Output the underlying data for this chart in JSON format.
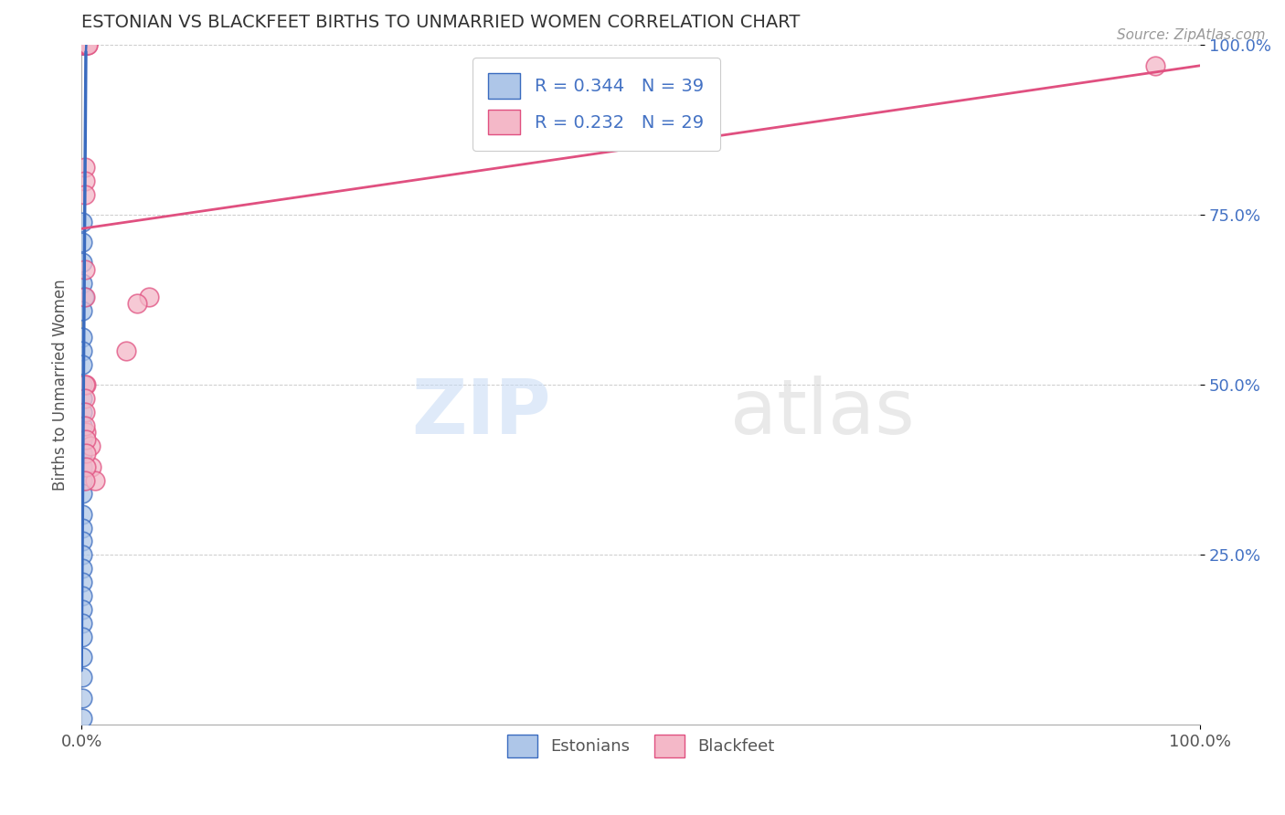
{
  "title": "ESTONIAN VS BLACKFEET BIRTHS TO UNMARRIED WOMEN CORRELATION CHART",
  "source_text": "Source: ZipAtlas.com",
  "ylabel": "Births to Unmarried Women",
  "legend_label1": "Estonians",
  "legend_label2": "Blackfeet",
  "R_blue": 0.344,
  "N_blue": 39,
  "R_pink": 0.232,
  "N_pink": 29,
  "blue_color": "#aec6e8",
  "pink_color": "#f4b8c8",
  "blue_line_color": "#3a6bbf",
  "pink_line_color": "#e05080",
  "watermark_zip": "ZIP",
  "watermark_atlas": "atlas",
  "blue_x": [
    0.001,
    0.002,
    0.002,
    0.003,
    0.003,
    0.003,
    0.004,
    0.001,
    0.001,
    0.001,
    0.001,
    0.002,
    0.001,
    0.001,
    0.001,
    0.001,
    0.001,
    0.001,
    0.001,
    0.001,
    0.001,
    0.001,
    0.001,
    0.001,
    0.001,
    0.001,
    0.001,
    0.001,
    0.001,
    0.001,
    0.001,
    0.001,
    0.001,
    0.001,
    0.001,
    0.001,
    0.001,
    0.001,
    0.001
  ],
  "blue_y": [
    1.0,
    1.0,
    1.0,
    1.0,
    1.0,
    1.0,
    1.0,
    0.74,
    0.71,
    0.68,
    0.65,
    0.63,
    0.61,
    0.57,
    0.55,
    0.53,
    0.5,
    0.48,
    0.46,
    0.44,
    0.42,
    0.4,
    0.38,
    0.36,
    0.34,
    0.31,
    0.29,
    0.27,
    0.25,
    0.23,
    0.21,
    0.19,
    0.17,
    0.15,
    0.13,
    0.1,
    0.07,
    0.04,
    0.01
  ],
  "pink_x": [
    0.001,
    0.002,
    0.003,
    0.004,
    0.005,
    0.006,
    0.006,
    0.003,
    0.003,
    0.003,
    0.003,
    0.003,
    0.004,
    0.004,
    0.008,
    0.009,
    0.012,
    0.06,
    0.003,
    0.003,
    0.003,
    0.003,
    0.004,
    0.004,
    0.004,
    0.003,
    0.04,
    0.05,
    0.96
  ],
  "pink_y": [
    1.0,
    1.0,
    1.0,
    1.0,
    1.0,
    1.0,
    1.0,
    0.82,
    0.8,
    0.78,
    0.67,
    0.63,
    0.5,
    0.43,
    0.41,
    0.38,
    0.36,
    0.63,
    0.5,
    0.48,
    0.46,
    0.44,
    0.42,
    0.4,
    0.38,
    0.36,
    0.55,
    0.62,
    0.97
  ],
  "xmin": 0.0,
  "xmax": 1.0,
  "ymin": 0.0,
  "ymax": 1.0,
  "yticks": [
    0.25,
    0.5,
    0.75,
    1.0
  ],
  "yticklabels": [
    "25.0%",
    "50.0%",
    "75.0%",
    "100.0%"
  ],
  "grid_color": "#cccccc",
  "background_color": "#ffffff",
  "pink_line_x0": 0.0,
  "pink_line_y0": 0.73,
  "pink_line_x1": 1.0,
  "pink_line_y1": 0.97,
  "blue_line_x0": 0.0,
  "blue_line_y0": 0.08,
  "blue_line_x1": 0.004,
  "blue_line_y1": 0.99
}
